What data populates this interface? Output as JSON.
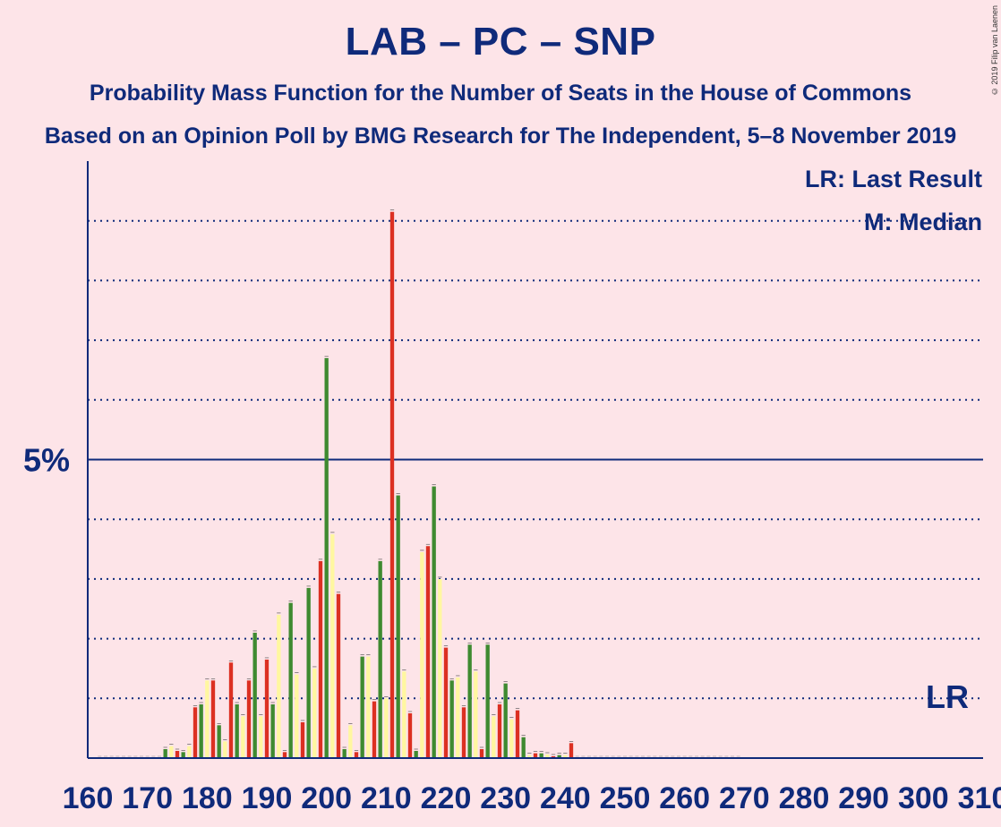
{
  "title": "LAB – PC – SNP",
  "subtitle": "Probability Mass Function for the Number of Seats in the House of Commons",
  "subtitle2": "Based on an Opinion Poll by BMG Research for The Independent, 5–8 November 2019",
  "copyright": "© 2019 Filip van Laenen",
  "legend": {
    "lr": "LR: Last Result",
    "m": "M: Median"
  },
  "lr_marker": "LR",
  "colors": {
    "background": "#fde4e8",
    "axis": "#0f2a7a",
    "red": "#dc3022",
    "green": "#3e8a30",
    "yellow": "#fff7a0"
  },
  "chart_data": {
    "type": "bar",
    "xlabel": "",
    "ylabel": "",
    "xlim": [
      160,
      310
    ],
    "ylim": [
      0,
      10
    ],
    "x_ticks": [
      160,
      170,
      180,
      190,
      200,
      210,
      220,
      230,
      240,
      250,
      260,
      270,
      280,
      290,
      300,
      310
    ],
    "x_tick_labels": [
      "160",
      "170",
      "180",
      "190",
      "200",
      "210",
      "220",
      "230",
      "240",
      "250",
      "260",
      "270",
      "280",
      "290",
      "300",
      "310"
    ],
    "y_label_value": 5,
    "y_label_text": "5%",
    "median": 211,
    "last_result": 304,
    "series_colors": [
      "red",
      "green",
      "yellow"
    ],
    "x": [
      173,
      174,
      175,
      176,
      177,
      178,
      179,
      180,
      181,
      182,
      183,
      184,
      185,
      186,
      187,
      188,
      189,
      190,
      191,
      192,
      193,
      194,
      195,
      196,
      197,
      198,
      199,
      200,
      201,
      202,
      203,
      204,
      205,
      206,
      207,
      208,
      209,
      210,
      211,
      212,
      213,
      214,
      215,
      216,
      217,
      218,
      219,
      220,
      221,
      222,
      223,
      224,
      225,
      226,
      227,
      228,
      229,
      230,
      231,
      232,
      233,
      234,
      235,
      236,
      237,
      238,
      239,
      240,
      241
    ],
    "values": [
      0.15,
      0.2,
      0.12,
      0.1,
      0.2,
      0.85,
      0.9,
      1.3,
      1.3,
      0.55,
      0.28,
      1.6,
      0.9,
      0.7,
      1.3,
      2.1,
      0.7,
      1.65,
      0.9,
      2.4,
      0.1,
      2.6,
      1.4,
      0.6,
      2.85,
      1.5,
      3.3,
      6.7,
      3.75,
      2.75,
      0.15,
      0.55,
      0.1,
      1.7,
      1.7,
      0.95,
      3.3,
      1.0,
      9.15,
      4.4,
      1.45,
      0.75,
      0.12,
      3.45,
      3.55,
      4.55,
      3.0,
      1.85,
      1.3,
      1.35,
      0.85,
      1.9,
      1.45,
      0.15,
      1.9,
      0.7,
      0.9,
      1.25,
      0.65,
      0.8,
      0.35,
      0.05,
      0.08,
      0.08,
      0.06,
      0.03,
      0.05,
      0.05,
      0.25
    ]
  }
}
